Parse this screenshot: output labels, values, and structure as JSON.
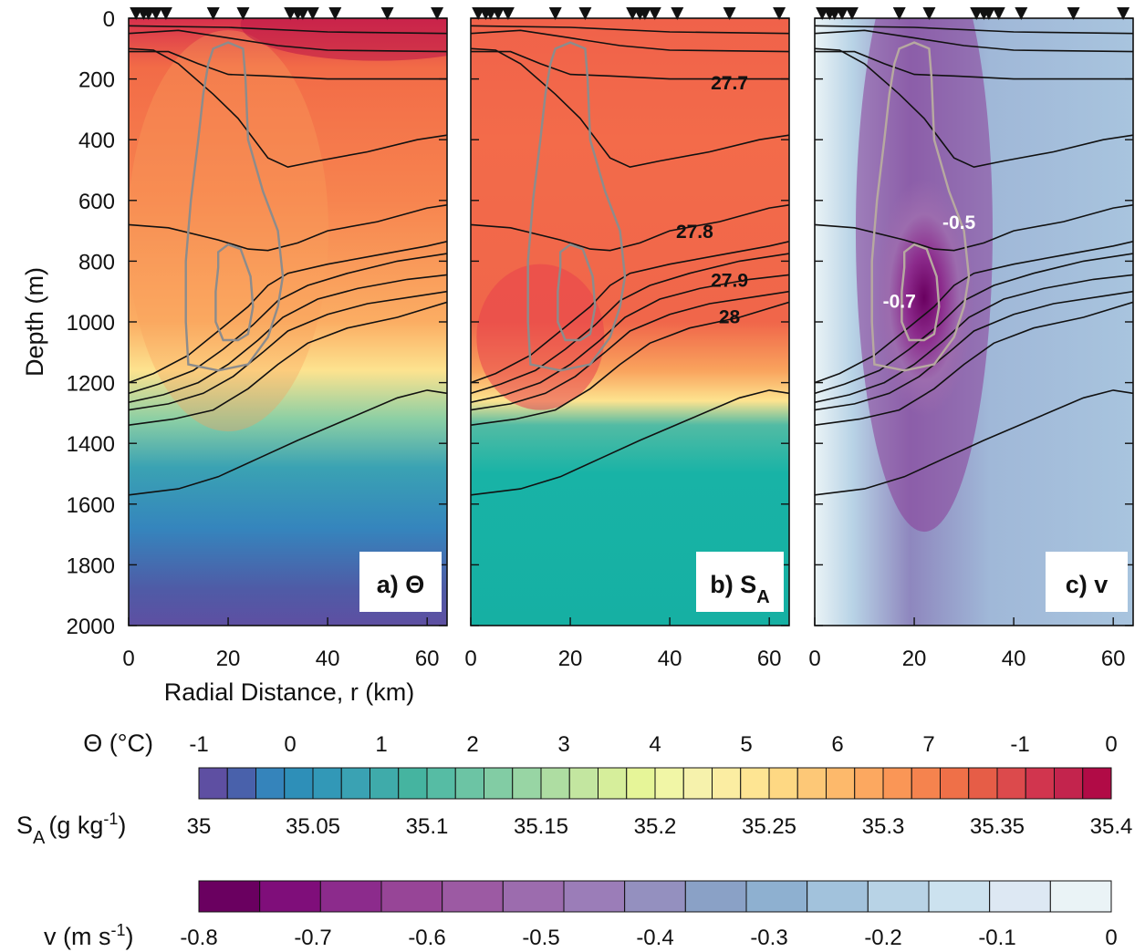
{
  "chart_data": {
    "type": "heatmap",
    "panels": [
      {
        "label": "a) Θ",
        "field": "theta"
      },
      {
        "label": "b) S",
        "label_sub": "A",
        "field": "salinity"
      },
      {
        "label": "c) v",
        "field": "velocity"
      }
    ],
    "xlabel": "Radial Distance, r (km)",
    "ylabel": "Depth (m)",
    "xlim": [
      0,
      64
    ],
    "ylim": [
      0,
      2000
    ],
    "y_reversed": true,
    "xticks": [
      "0",
      "20",
      "40",
      "60"
    ],
    "yticks": [
      "0",
      "200",
      "400",
      "600",
      "800",
      "1000",
      "1200",
      "1400",
      "1600",
      "1800",
      "2000"
    ],
    "xtick_values": [
      0,
      20,
      40,
      60
    ],
    "ytick_values": [
      0,
      200,
      400,
      600,
      800,
      1000,
      1200,
      1400,
      1600,
      1800,
      2000
    ],
    "station_positions_km": [
      1.5,
      3,
      4,
      5.5,
      7.5,
      17,
      23,
      32.5,
      34,
      35,
      37,
      41.5,
      52,
      62
    ],
    "isopycnal_labels_b": [
      {
        "text": "27.7",
        "x": 52,
        "y": 210
      },
      {
        "text": "27.8",
        "x": 45,
        "y": 700
      },
      {
        "text": "27.9",
        "x": 52,
        "y": 860
      },
      {
        "text": "28",
        "x": 52,
        "y": 980
      }
    ],
    "velocity_labels_c": [
      {
        "text": "-0.5",
        "x": 29,
        "y": 670
      },
      {
        "text": "-0.7",
        "x": 17,
        "y": 930
      }
    ],
    "colorbars": [
      {
        "name": "theta",
        "label": "Θ (°C)",
        "ticks": [
          "-1",
          "0",
          "1",
          "2",
          "3",
          "4",
          "5",
          "6",
          "7",
          "-1",
          "0"
        ],
        "colors": [
          "#5e4fa2",
          "#4961ab",
          "#3584bb",
          "#2e8fb8",
          "#3298b7",
          "#3aa2b3",
          "#3fabaa",
          "#45b4a0",
          "#56bca4",
          "#6cc4a4",
          "#82cca4",
          "#98d5a4",
          "#aedda2",
          "#c3e6a0",
          "#d6ee9b",
          "#e6f598",
          "#f1f6a6",
          "#f6f2ac",
          "#fbeda2",
          "#fee593",
          "#fed883",
          "#fdc877",
          "#fdb96b",
          "#fca860",
          "#fa9656",
          "#f5834e",
          "#ef7048",
          "#e65d47",
          "#dc4a4c",
          "#d1354e",
          "#c3244d",
          "#b10b46"
        ]
      },
      {
        "name": "salinity",
        "label": "S",
        "label_sub": "A",
        "label_unit": "(g kg",
        "label_sup": "-1",
        "ticks": [
          "35",
          "35.05",
          "35.1",
          "35.15",
          "35.2",
          "35.25",
          "35.3",
          "35.35",
          "35.4"
        ]
      },
      {
        "name": "velocity",
        "label": "v (m s",
        "label_sup": "-1",
        "ticks": [
          "-0.8",
          "-0.7",
          "-0.6",
          "-0.5",
          "-0.4",
          "-0.3",
          "-0.2",
          "-0.1",
          "0"
        ],
        "colors": [
          "#6a0060",
          "#7f0e7a",
          "#8c2b8c",
          "#974597",
          "#9c5aa3",
          "#9c6cae",
          "#9b7db8",
          "#9490bf",
          "#8aa1c6",
          "#8eb0d0",
          "#a2c2dc",
          "#b8d3e6",
          "#cce2ef",
          "#dde8f3",
          "#eaf3f6"
        ]
      }
    ]
  }
}
